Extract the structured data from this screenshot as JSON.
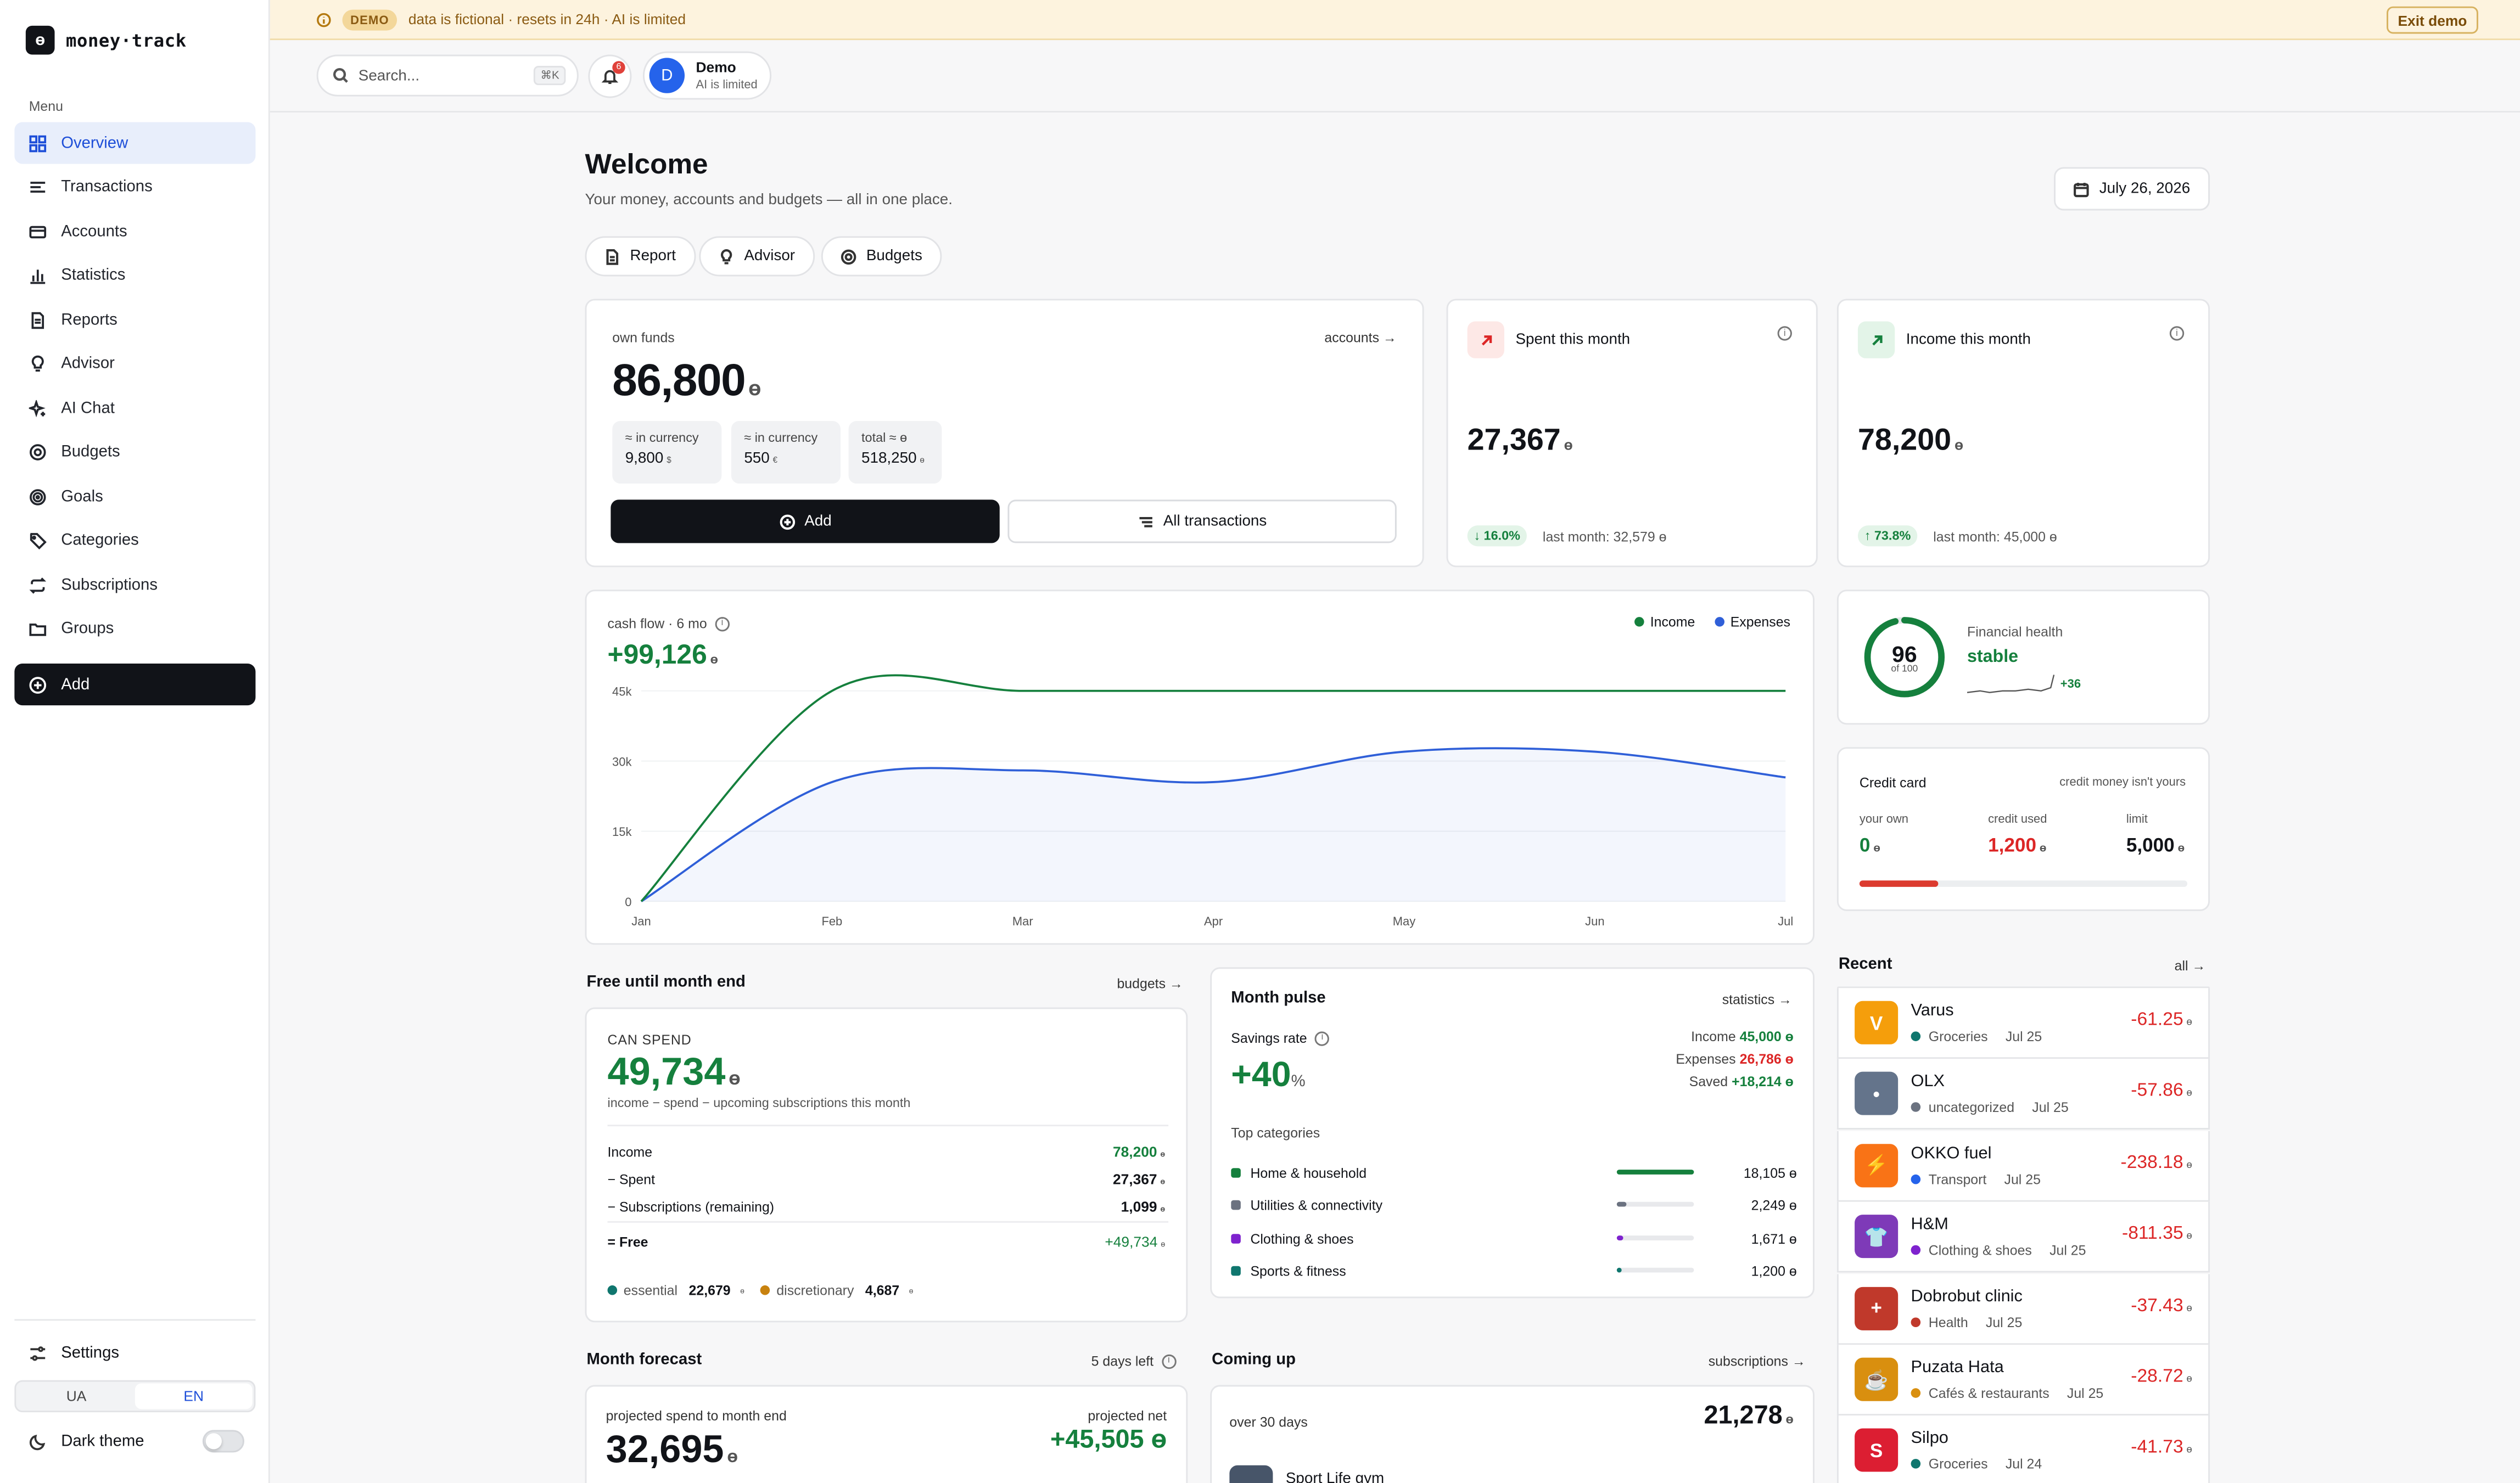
{
  "app": {
    "name": "money·track",
    "logo_char": "ɵ"
  },
  "banner": {
    "badge": "DEMO",
    "text": "data is fictional · resets in 24h · AI is limited",
    "exit": "Exit demo"
  },
  "sidebar": {
    "menu_label": "Menu",
    "items": [
      {
        "label": "Overview",
        "icon": "grid-icon"
      },
      {
        "label": "Transactions",
        "icon": "transactions-icon"
      },
      {
        "label": "Accounts",
        "icon": "card-icon"
      },
      {
        "label": "Statistics",
        "icon": "bar-chart-icon"
      },
      {
        "label": "Reports",
        "icon": "report-icon"
      },
      {
        "label": "Advisor",
        "icon": "bulb-icon"
      },
      {
        "label": "AI Chat",
        "icon": "sparkle-icon"
      },
      {
        "label": "Budgets",
        "icon": "budget-icon"
      },
      {
        "label": "Goals",
        "icon": "target-icon"
      },
      {
        "label": "Categories",
        "icon": "tag-icon"
      },
      {
        "label": "Subscriptions",
        "icon": "repeat-icon"
      },
      {
        "label": "Groups",
        "icon": "folder-icon"
      }
    ],
    "add": "Add",
    "settings": "Settings",
    "lang": [
      "UA",
      "EN"
    ],
    "lang_active": "EN",
    "dark_theme": "Dark theme"
  },
  "topbar": {
    "search_placeholder": "Search...",
    "shortcut": "⌘K",
    "notifications": "6",
    "user": {
      "initial": "D",
      "name": "Demo",
      "status": "AI is limited"
    }
  },
  "header": {
    "title": "Welcome",
    "subtitle": "Your money, accounts and budgets — all in one place.",
    "date": "July 26, 2026",
    "chips": [
      "Report",
      "Advisor",
      "Budgets"
    ]
  },
  "currency": "ɵ",
  "own_funds": {
    "label": "own funds",
    "link": "accounts →",
    "value": "86,800",
    "pills": [
      {
        "label": "≈ in currency",
        "value": "9,800",
        "cur": "$"
      },
      {
        "label": "≈ in currency",
        "value": "550",
        "cur": "€"
      },
      {
        "label": "total ≈ ɵ",
        "value": "518,250",
        "cur": "ɵ"
      }
    ],
    "add": "Add",
    "all_tx": "All transactions"
  },
  "spent": {
    "title": "Spent this month",
    "value": "27,367",
    "delta": "↓ 16.0%",
    "last": "last month: 32,579 ɵ"
  },
  "income": {
    "title": "Income this month",
    "value": "78,200",
    "delta": "↑ 73.8%",
    "last": "last month: 45,000 ɵ"
  },
  "cashflow": {
    "label": "cash flow · 6 mo",
    "value": "+99,126",
    "legend": [
      "Income",
      "Expenses"
    ]
  },
  "chart_data": {
    "type": "line",
    "categories": [
      "Jan",
      "Feb",
      "Mar",
      "Apr",
      "May",
      "Jun",
      "Jul"
    ],
    "y_ticks": [
      "0",
      "15k",
      "30k",
      "45k"
    ],
    "ylim": [
      0,
      45000
    ],
    "series": [
      {
        "name": "Income",
        "color": "#15803d",
        "values": [
          0,
          45000,
          45000,
          45000,
          45000,
          45000,
          45000
        ]
      },
      {
        "name": "Expenses",
        "color": "#2f5fd8",
        "values": [
          0,
          25500,
          28000,
          25500,
          32000,
          32000,
          26500
        ]
      }
    ]
  },
  "health": {
    "score": "96",
    "of": "of 100",
    "label": "Financial health",
    "status": "stable",
    "delta": "+36",
    "score_fraction": 0.96
  },
  "credit": {
    "title": "Credit card",
    "note": "credit money isn't yours",
    "own_label": "your own",
    "own": "0",
    "used_label": "credit used",
    "used": "1,200",
    "limit_label": "limit",
    "limit": "5,000",
    "used_fraction": 0.24
  },
  "free": {
    "title": "Free until month end",
    "link": "budgets →",
    "can_spend": "CAN SPEND",
    "value": "49,734",
    "note": "income − spend − upcoming subscriptions this month",
    "rows": [
      {
        "label": "Income",
        "value": "78,200"
      },
      {
        "label": "− Spent",
        "value": "27,367"
      },
      {
        "label": "− Subscriptions (remaining)",
        "value": "1,099"
      },
      {
        "label": "= Free",
        "value": "+49,734"
      }
    ],
    "essential_label": "essential",
    "essential": "22,679",
    "discretionary_label": "discretionary",
    "discretionary": "4,687"
  },
  "pulse": {
    "title": "Month pulse",
    "link": "statistics →",
    "savings_label": "Savings rate",
    "savings": "+40",
    "income_label": "Income",
    "income": "45,000 ɵ",
    "expenses_label": "Expenses",
    "expenses": "26,786 ɵ",
    "saved_label": "Saved",
    "saved": "+18,214 ɵ",
    "top_label": "Top categories",
    "cats": [
      {
        "name": "Home & household",
        "value": "18,105 ɵ",
        "color": "#15803d",
        "fraction": 1.0,
        "bar": "#15803d"
      },
      {
        "name": "Utilities & connectivity",
        "value": "2,249 ɵ",
        "color": "#6b7280",
        "fraction": 0.12,
        "bar": "#6b7280"
      },
      {
        "name": "Clothing & shoes",
        "value": "1,671 ɵ",
        "color": "#7e22ce",
        "fraction": 0.09,
        "bar": "#7e22ce"
      },
      {
        "name": "Sports & fitness",
        "value": "1,200 ɵ",
        "color": "#0f766e",
        "fraction": 0.07,
        "bar": "#0f766e"
      }
    ]
  },
  "forecast": {
    "title": "Month forecast",
    "days": "5 days left",
    "proj_label": "projected spend to month end",
    "proj": "32,695",
    "net_label": "projected net",
    "net": "+45,505 ɵ"
  },
  "coming": {
    "title": "Coming up",
    "link": "subscriptions →",
    "period": "over 30 days",
    "total": "21,278",
    "first": "Sport Life gym"
  },
  "recent": {
    "title": "Recent",
    "link": "all →",
    "items": [
      {
        "name": "Varus",
        "cat": "Groceries",
        "date": "Jul 25",
        "amount": "-61.25",
        "icon": "V",
        "bg": "#f59e0b",
        "dot": "#0f766e"
      },
      {
        "name": "OLX",
        "cat": "uncategorized",
        "date": "Jul 25",
        "amount": "-57.86",
        "icon": "•",
        "bg": "#64748b",
        "dot": "#6b7280"
      },
      {
        "name": "OKKO fuel",
        "cat": "Transport",
        "date": "Jul 25",
        "amount": "-238.18",
        "icon": "⚡",
        "bg": "#f97316",
        "dot": "#2563eb"
      },
      {
        "name": "H&M",
        "cat": "Clothing & shoes",
        "date": "Jul 25",
        "amount": "-811.35",
        "icon": "👕",
        "bg": "#7e3ab8",
        "dot": "#7e22ce"
      },
      {
        "name": "Dobrobut clinic",
        "cat": "Health",
        "date": "Jul 25",
        "amount": "-37.43",
        "icon": "+",
        "bg": "#c0392b",
        "dot": "#c0392b"
      },
      {
        "name": "Puzata Hata",
        "cat": "Cafés & restaurants",
        "date": "Jul 25",
        "amount": "-28.72",
        "icon": "☕",
        "bg": "#d98f0f",
        "dot": "#d98f0f"
      },
      {
        "name": "Silpo",
        "cat": "Groceries",
        "date": "Jul 24",
        "amount": "-41.73",
        "icon": "S",
        "bg": "#dc1e32",
        "dot": "#0f766e"
      }
    ]
  }
}
